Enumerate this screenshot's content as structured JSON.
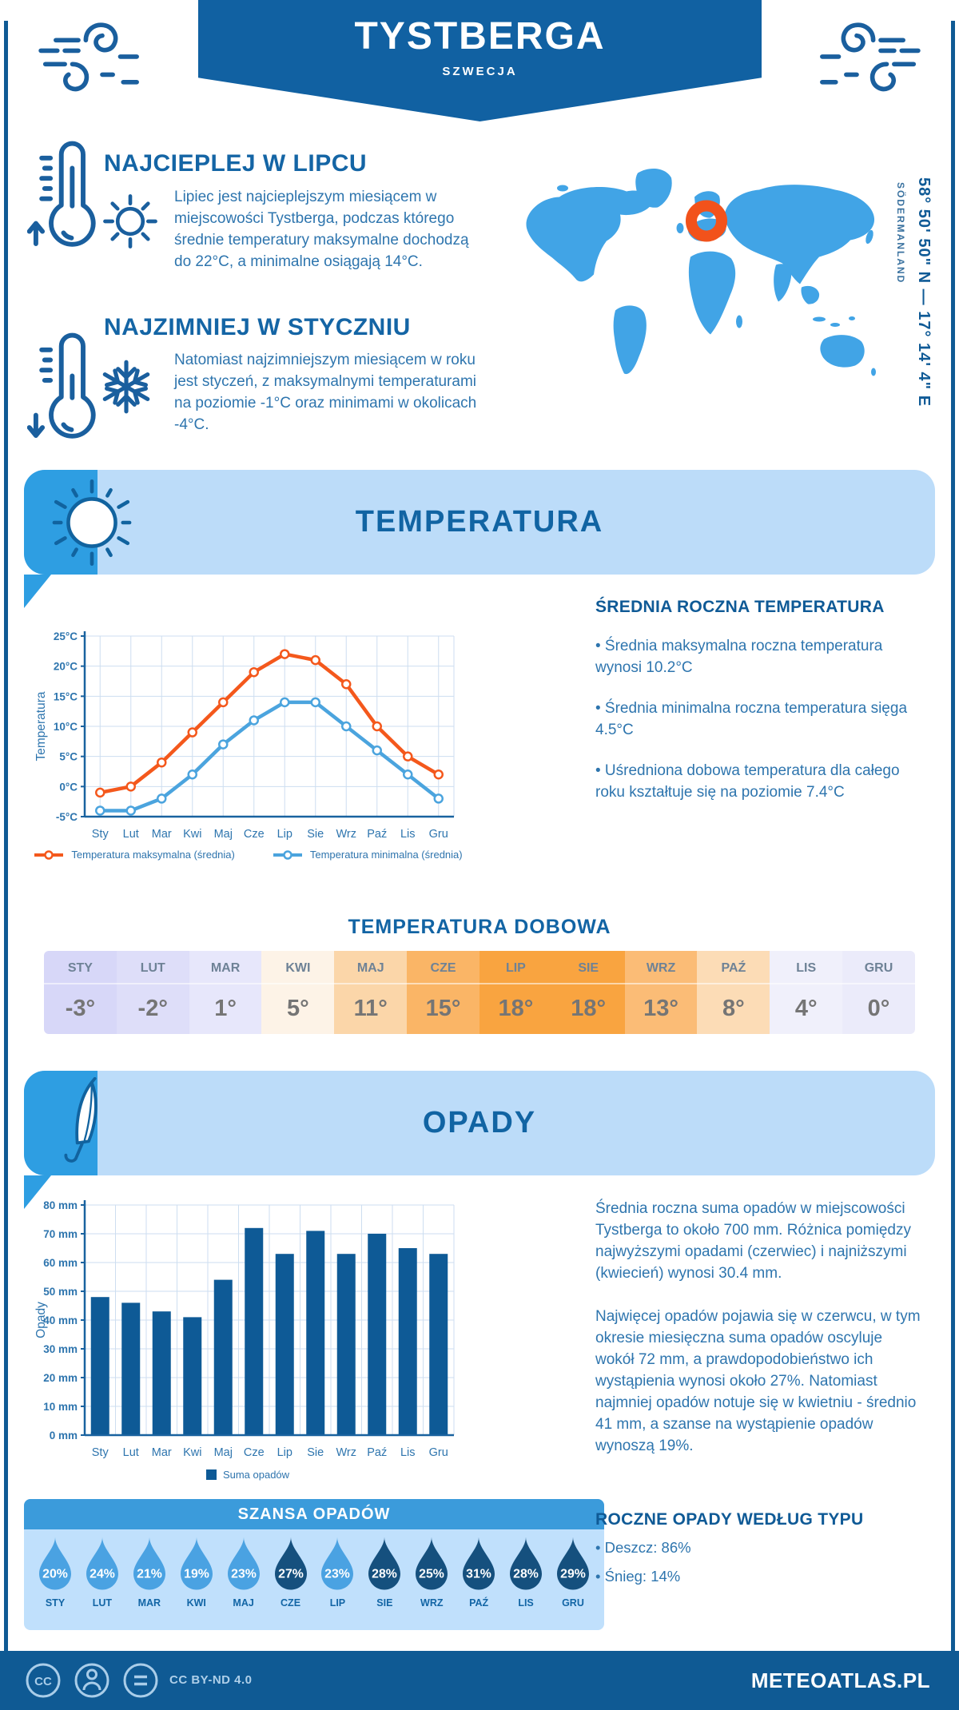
{
  "header": {
    "title": "TYSTBERGA",
    "subtitle": "SZWECJA"
  },
  "location": {
    "coordinates": "58° 50' 50\" N — 17° 14' 4\" E",
    "region": "SÖDERMANLAND"
  },
  "highlights": {
    "warmest": {
      "heading": "NAJCIEPLEJ W LIPCU",
      "text": "Lipiec jest najcieplejszym miesiącem w miejscowości Tystberga, podczas którego średnie temperatury maksymalne dochodzą do 22°C, a minimalne osiągają 14°C."
    },
    "coldest": {
      "heading": "NAJZIMNIEJ W STYCZNIU",
      "text": "Natomiast najzimniejszym miesiącem w roku jest styczeń, z maksymalnymi temperaturami na poziomie -1°C oraz minimami w okolicach -4°C."
    }
  },
  "temperature": {
    "banner": "TEMPERATURA",
    "annual_heading": "ŚREDNIA ROCZNA TEMPERATURA",
    "bullets": [
      "• Średnia maksymalna roczna temperatura wynosi 10.2°C",
      "• Średnia minimalna roczna temperatura sięga 4.5°C",
      "• Uśredniona dobowa temperatura dla całego roku kształtuje się na poziomie 7.4°C"
    ],
    "daily_heading": "TEMPERATURA DOBOWA",
    "daily": {
      "months": [
        "STY",
        "LUT",
        "MAR",
        "KWI",
        "MAJ",
        "CZE",
        "LIP",
        "SIE",
        "WRZ",
        "PAŹ",
        "LIS",
        "GRU"
      ],
      "values": [
        "-3°",
        "-2°",
        "1°",
        "5°",
        "11°",
        "15°",
        "18°",
        "18°",
        "13°",
        "8°",
        "4°",
        "0°"
      ],
      "cell_colors": [
        "#d7d7f8",
        "#dedef9",
        "#e7e7fb",
        "#fdf3e7",
        "#fbd6a9",
        "#fab566",
        "#f9a440",
        "#f9a440",
        "#fbbc76",
        "#fcdcb6",
        "#f0f0fb",
        "#ebebfa"
      ]
    }
  },
  "precipitation": {
    "banner": "OPADY",
    "paragraph1": "Średnia roczna suma opadów w miejscowości Tystberga to około 700 mm. Różnica pomiędzy najwyższymi opadami (czerwiec) i najniższymi (kwiecień) wynosi 30.4 mm.",
    "paragraph2": "Najwięcej opadów pojawia się w czerwcu, w tym okresie miesięczna suma opadów oscyluje wokół 72 mm, a prawdopodobieństwo ich wystąpienia wynosi około 27%. Natomiast najmniej opadów notuje się w kwietniu - średnio 41 mm, a szanse na wystąpienie opadów wynoszą 19%.",
    "chance_heading": "SZANSA OPADÓW",
    "chance": {
      "months": [
        "STY",
        "LUT",
        "MAR",
        "KWI",
        "MAJ",
        "CZE",
        "LIP",
        "SIE",
        "WRZ",
        "PAŹ",
        "LIS",
        "GRU"
      ],
      "values": [
        "20%",
        "24%",
        "21%",
        "19%",
        "23%",
        "27%",
        "23%",
        "28%",
        "25%",
        "31%",
        "28%",
        "29%"
      ],
      "dark": [
        false,
        false,
        false,
        false,
        false,
        true,
        false,
        true,
        true,
        true,
        true,
        true
      ],
      "light_color": "#4aa2e2",
      "dark_color": "#15507e"
    },
    "types_heading": "ROCZNE OPADY WEDŁUG TYPU",
    "types": [
      "• Deszcz: 86%",
      "• Śnieg: 14%"
    ]
  },
  "chart_data": [
    {
      "type": "line",
      "ylabel": "Temperatura",
      "categories": [
        "Sty",
        "Lut",
        "Mar",
        "Kwi",
        "Maj",
        "Cze",
        "Lip",
        "Sie",
        "Wrz",
        "Paź",
        "Lis",
        "Gru"
      ],
      "series": [
        {
          "name": "Temperatura maksymalna (średnia)",
          "color": "#f4581c",
          "values": [
            -1,
            0,
            4,
            9,
            14,
            19,
            22,
            21,
            17,
            10,
            5,
            2
          ]
        },
        {
          "name": "Temperatura minimalna (średnia)",
          "color": "#4ba4de",
          "values": [
            -4,
            -4,
            -2,
            2,
            7,
            11,
            14,
            14,
            10,
            6,
            2,
            -2
          ]
        }
      ],
      "ylim": [
        -5,
        25
      ],
      "ytick_step": 5,
      "ytick_suffix": "°C",
      "grid": true,
      "legend_position": "bottom"
    },
    {
      "type": "bar",
      "ylabel": "Opady",
      "categories": [
        "Sty",
        "Lut",
        "Mar",
        "Kwi",
        "Maj",
        "Cze",
        "Lip",
        "Sie",
        "Wrz",
        "Paź",
        "Lis",
        "Gru"
      ],
      "series": [
        {
          "name": "Suma opadów",
          "color": "#0e5a96",
          "values": [
            48,
            46,
            43,
            41,
            54,
            72,
            63,
            71,
            63,
            70,
            65,
            63
          ]
        }
      ],
      "ylim": [
        0,
        80
      ],
      "ytick_step": 10,
      "ytick_suffix": " mm",
      "grid": true,
      "legend_position": "bottom"
    }
  ],
  "footer": {
    "license": "CC BY-ND 4.0",
    "site": "METEOATLAS.PL"
  },
  "colors": {
    "primary_dark": "#0f5a96",
    "banner_bg": "#1161a2",
    "body_text": "#2e75ae",
    "section_banner_bg": "#bcdcf9",
    "section_accent": "#2e9ee2",
    "map_fill": "#41a4e6",
    "marker": "#f2521b",
    "grid_line": "#cddef0",
    "axis": "#19629f"
  }
}
